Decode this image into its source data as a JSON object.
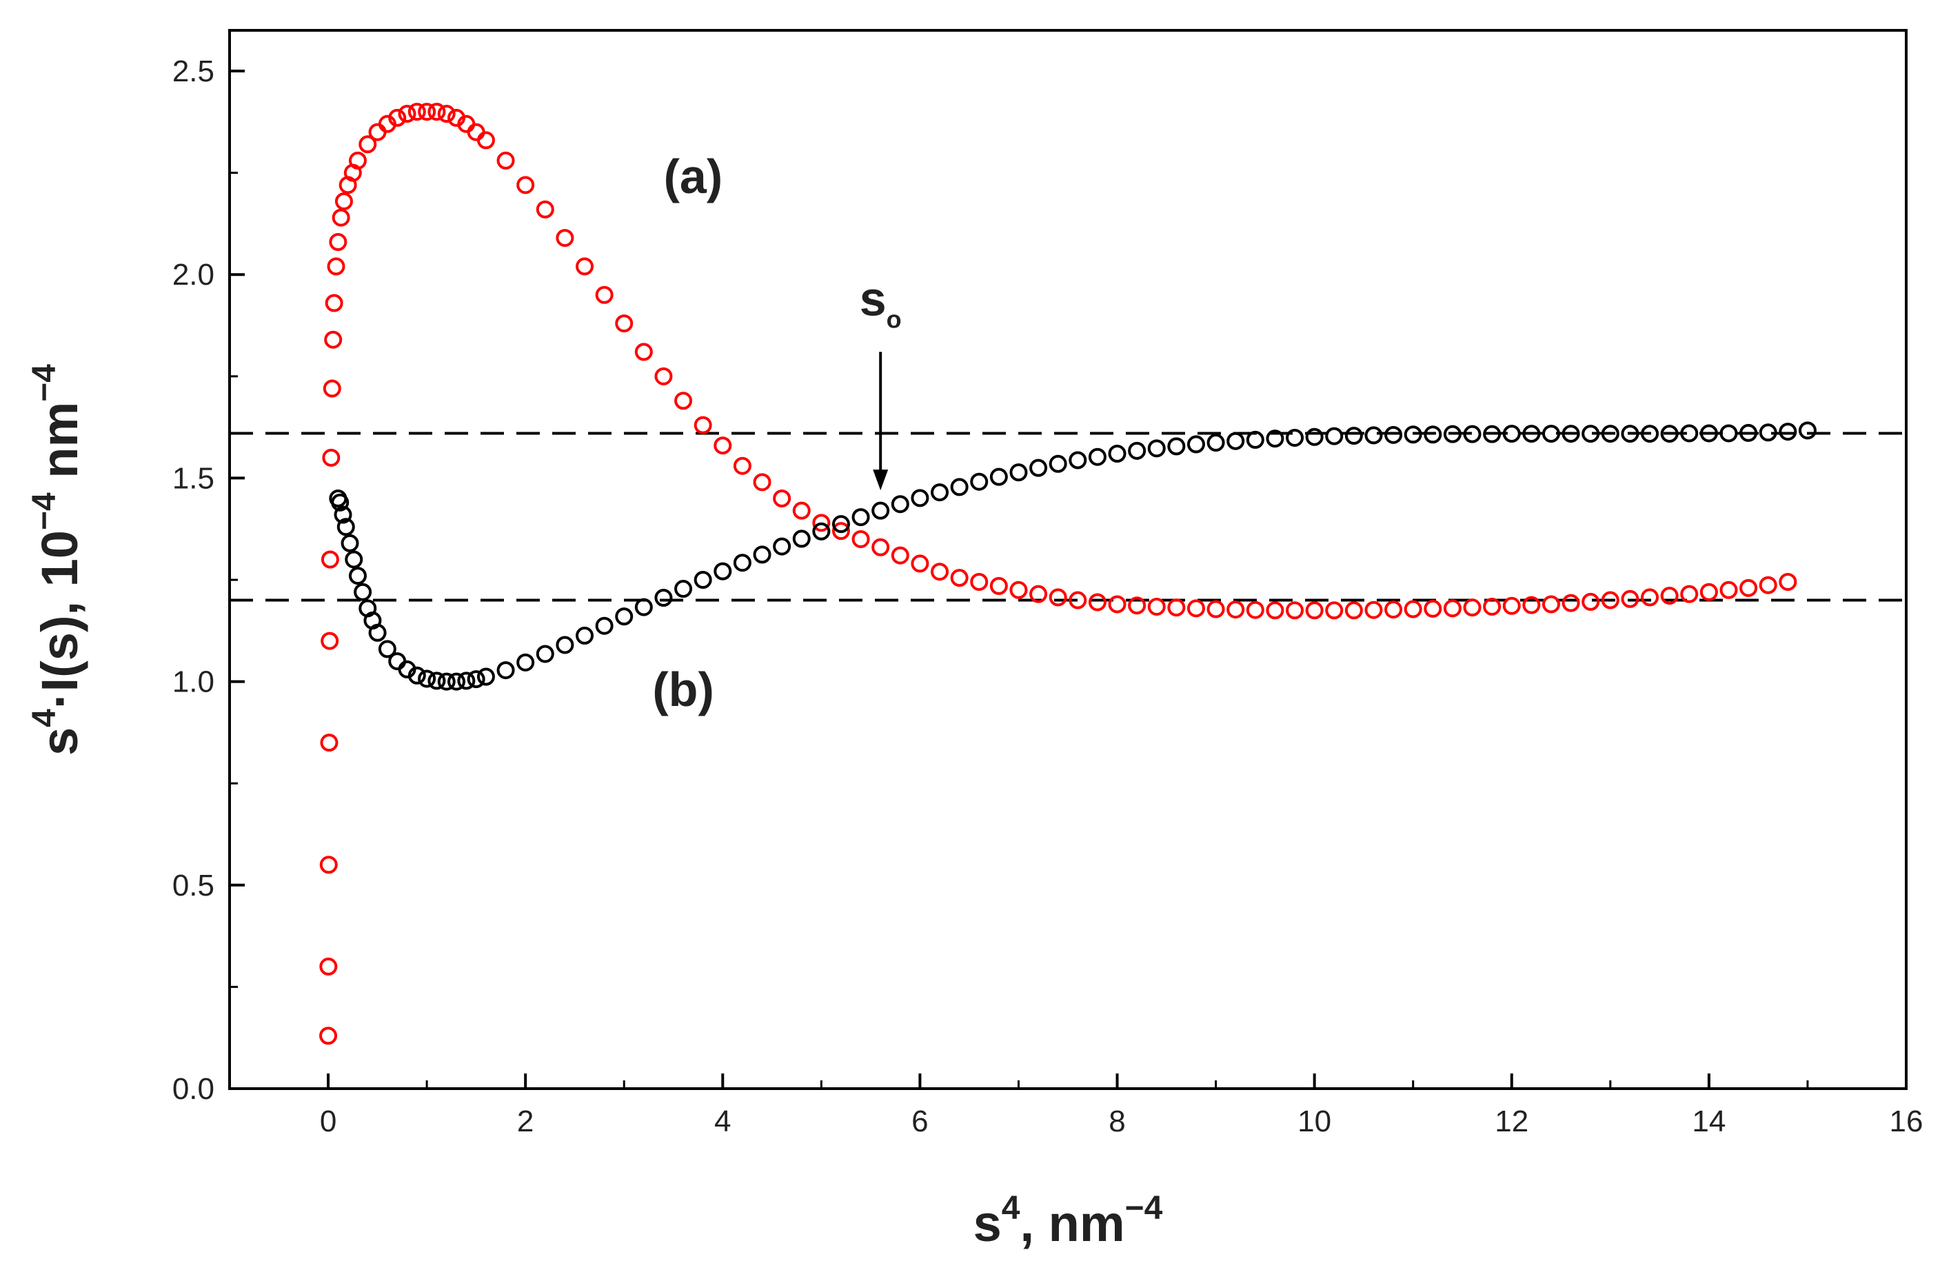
{
  "chart_data": {
    "type": "scatter",
    "title": "",
    "xlabel": {
      "base": "s",
      "sup": "4",
      "rest": ", nm",
      "unit_sup": "−4"
    },
    "ylabel": {
      "base": "s",
      "sup": "4",
      "rest": "·I(s), 10",
      "rest_sup": "−4",
      "tail": " nm",
      "tail_sup": "−4"
    },
    "xlim": [
      -1,
      16
    ],
    "ylim": [
      0,
      2.6
    ],
    "x_ticks": [
      "0",
      "2",
      "4",
      "6",
      "8",
      "10",
      "12",
      "14",
      "16"
    ],
    "y_ticks": [
      "0.0",
      "0.5",
      "1.0",
      "1.5",
      "2.0",
      "2.5"
    ],
    "hlines": [
      1.61,
      1.2
    ],
    "series": [
      {
        "name": "(a)",
        "color": "#ff0000",
        "marker": "open-circle",
        "x": [
          0,
          0.002,
          0.005,
          0.01,
          0.015,
          0.02,
          0.03,
          0.04,
          0.05,
          0.06,
          0.08,
          0.1,
          0.13,
          0.16,
          0.2,
          0.25,
          0.3,
          0.4,
          0.5,
          0.6,
          0.7,
          0.8,
          0.9,
          1.0,
          1.1,
          1.2,
          1.3,
          1.4,
          1.5,
          1.6,
          1.8,
          2.0,
          2.2,
          2.4,
          2.6,
          2.8,
          3.0,
          3.2,
          3.4,
          3.6,
          3.8,
          4.0,
          4.2,
          4.4,
          4.6,
          4.8,
          5.0,
          5.2,
          5.4,
          5.6,
          5.8,
          6.0,
          6.2,
          6.4,
          6.6,
          6.8,
          7.0,
          7.2,
          7.4,
          7.6,
          7.8,
          8.0,
          8.2,
          8.4,
          8.6,
          8.8,
          9.0,
          9.2,
          9.4,
          9.6,
          9.8,
          10.0,
          10.2,
          10.4,
          10.6,
          10.8,
          11.0,
          11.2,
          11.4,
          11.6,
          11.8,
          12.0,
          12.2,
          12.4,
          12.6,
          12.8,
          13.0,
          13.2,
          13.4,
          13.6,
          13.8,
          14.0,
          14.2,
          14.4,
          14.6,
          14.8
        ],
        "y": [
          0.13,
          0.3,
          0.55,
          0.85,
          1.1,
          1.3,
          1.55,
          1.72,
          1.84,
          1.93,
          2.02,
          2.08,
          2.14,
          2.18,
          2.22,
          2.25,
          2.28,
          2.32,
          2.35,
          2.37,
          2.385,
          2.395,
          2.4,
          2.4,
          2.4,
          2.395,
          2.385,
          2.37,
          2.35,
          2.33,
          2.28,
          2.22,
          2.16,
          2.09,
          2.02,
          1.95,
          1.88,
          1.81,
          1.75,
          1.69,
          1.63,
          1.58,
          1.53,
          1.49,
          1.45,
          1.42,
          1.39,
          1.37,
          1.35,
          1.33,
          1.31,
          1.29,
          1.27,
          1.255,
          1.245,
          1.235,
          1.225,
          1.215,
          1.207,
          1.2,
          1.195,
          1.19,
          1.187,
          1.184,
          1.182,
          1.18,
          1.178,
          1.177,
          1.176,
          1.175,
          1.175,
          1.175,
          1.175,
          1.175,
          1.176,
          1.177,
          1.178,
          1.179,
          1.18,
          1.182,
          1.184,
          1.186,
          1.188,
          1.19,
          1.193,
          1.196,
          1.2,
          1.203,
          1.207,
          1.211,
          1.215,
          1.22,
          1.225,
          1.23,
          1.237,
          1.245
        ]
      },
      {
        "name": "(b)",
        "color": "#000000",
        "marker": "open-circle",
        "x": [
          0.1,
          0.12,
          0.15,
          0.18,
          0.22,
          0.26,
          0.3,
          0.35,
          0.4,
          0.45,
          0.5,
          0.6,
          0.7,
          0.8,
          0.9,
          1.0,
          1.1,
          1.2,
          1.3,
          1.4,
          1.5,
          1.6,
          1.8,
          2.0,
          2.2,
          2.4,
          2.6,
          2.8,
          3.0,
          3.2,
          3.4,
          3.6,
          3.8,
          4.0,
          4.2,
          4.4,
          4.6,
          4.8,
          5.0,
          5.2,
          5.4,
          5.6,
          5.8,
          6.0,
          6.2,
          6.4,
          6.6,
          6.8,
          7.0,
          7.2,
          7.4,
          7.6,
          7.8,
          8.0,
          8.2,
          8.4,
          8.6,
          8.8,
          9.0,
          9.2,
          9.4,
          9.6,
          9.8,
          10.0,
          10.2,
          10.4,
          10.6,
          10.8,
          11.0,
          11.2,
          11.4,
          11.6,
          11.8,
          12.0,
          12.2,
          12.4,
          12.6,
          12.8,
          13.0,
          13.2,
          13.4,
          13.6,
          13.8,
          14.0,
          14.2,
          14.4,
          14.6,
          14.8,
          15.0
        ],
        "y": [
          1.45,
          1.44,
          1.41,
          1.38,
          1.34,
          1.3,
          1.26,
          1.22,
          1.18,
          1.15,
          1.12,
          1.08,
          1.05,
          1.03,
          1.015,
          1.007,
          1.002,
          1.0,
          1.0,
          1.002,
          1.006,
          1.012,
          1.028,
          1.047,
          1.068,
          1.09,
          1.113,
          1.137,
          1.16,
          1.183,
          1.206,
          1.228,
          1.25,
          1.271,
          1.292,
          1.312,
          1.332,
          1.351,
          1.369,
          1.387,
          1.404,
          1.42,
          1.436,
          1.451,
          1.465,
          1.478,
          1.491,
          1.503,
          1.514,
          1.525,
          1.535,
          1.544,
          1.552,
          1.56,
          1.567,
          1.573,
          1.578,
          1.583,
          1.587,
          1.591,
          1.594,
          1.597,
          1.599,
          1.601,
          1.603,
          1.604,
          1.605,
          1.606,
          1.607,
          1.607,
          1.608,
          1.608,
          1.608,
          1.609,
          1.609,
          1.609,
          1.609,
          1.609,
          1.609,
          1.609,
          1.609,
          1.609,
          1.61,
          1.61,
          1.61,
          1.611,
          1.612,
          1.614,
          1.617
        ]
      }
    ],
    "annotations": [
      {
        "text": "(a)",
        "x": 3.7,
        "y": 2.2
      },
      {
        "text": "(b)",
        "x": 3.6,
        "y": 0.94
      },
      {
        "text": "s",
        "sub": "o",
        "x": 5.6,
        "y": 1.9
      }
    ],
    "arrow": {
      "x": 5.6,
      "y_from": 1.81,
      "y_to": 1.47
    }
  }
}
